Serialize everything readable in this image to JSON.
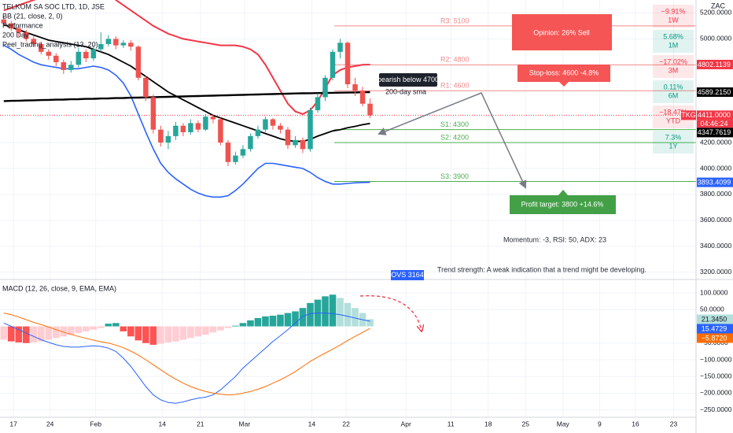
{
  "chart_data": [
    {
      "type": "candlestick",
      "title": "TELKOM SA SOC LTD, 1D, JSE",
      "currency": "ZAC",
      "indicators": [
        "BB (21, close, 2, 0)",
        "Performance",
        "200 Day",
        "Peel_trading_analysis (13, 20)"
      ],
      "up_color": "#26a69a",
      "down_color": "#ef5350",
      "xlim": [
        -0.5,
        92.6
      ],
      "ylim": [
        3150,
        5300
      ],
      "yticks": [
        {
          "value": 5200,
          "label": "5200.0000"
        },
        {
          "value": 5000,
          "label": "5000.0000"
        },
        {
          "value": 4200,
          "label": "4200.0000"
        },
        {
          "value": 4000,
          "label": "4000.0000"
        },
        {
          "value": 3800,
          "label": "3800.0000"
        },
        {
          "value": 3600,
          "label": "3600.0000"
        },
        {
          "value": 3400,
          "label": "3400.0000"
        },
        {
          "value": 3200,
          "label": "3200.0000"
        }
      ],
      "grid": true,
      "open": [
        5150,
        5120,
        5080,
        5050,
        5000,
        4960,
        4900,
        4870,
        4820,
        4760,
        4800,
        4900,
        4850,
        4920,
        4960,
        5000,
        4950,
        4970,
        4940,
        4700,
        4550,
        4300,
        4200,
        4250,
        4330,
        4280,
        4350,
        4300,
        4400,
        4380,
        4200,
        4050,
        4100,
        4150,
        4250,
        4300,
        4380,
        4330,
        4300,
        4180,
        4220,
        4150,
        4450,
        4550,
        4700,
        4900,
        4970,
        4650,
        4600,
        4500
      ],
      "high": [
        5180,
        5140,
        5100,
        5070,
        5020,
        4980,
        4920,
        4890,
        4840,
        4830,
        4930,
        4920,
        4950,
        5050,
        5030,
        5020,
        4990,
        4990,
        4950,
        4720,
        4570,
        4330,
        4290,
        4360,
        4350,
        4380,
        4370,
        4420,
        4410,
        4390,
        4220,
        4130,
        4180,
        4270,
        4330,
        4400,
        4390,
        4350,
        4320,
        4250,
        4240,
        4470,
        4580,
        4720,
        4920,
        5000,
        4980,
        4700,
        4630,
        4540
      ],
      "low": [
        5100,
        5060,
        5020,
        4980,
        4940,
        4880,
        4840,
        4790,
        4730,
        4740,
        4780,
        4820,
        4830,
        4900,
        4940,
        4920,
        4930,
        4910,
        4680,
        4520,
        4270,
        4170,
        4150,
        4220,
        4250,
        4260,
        4280,
        4290,
        4350,
        4180,
        4020,
        4030,
        4080,
        4130,
        4230,
        4280,
        4300,
        4270,
        4150,
        4160,
        4120,
        4130,
        4430,
        4520,
        4680,
        4850,
        4620,
        4560,
        4480,
        4390
      ],
      "close": [
        5120,
        5080,
        5050,
        5000,
        4960,
        4900,
        4870,
        4820,
        4760,
        4800,
        4900,
        4850,
        4920,
        4960,
        5000,
        4950,
        4970,
        4940,
        4700,
        4550,
        4300,
        4200,
        4250,
        4330,
        4280,
        4350,
        4300,
        4400,
        4380,
        4200,
        4050,
        4100,
        4150,
        4250,
        4300,
        4380,
        4330,
        4300,
        4180,
        4220,
        4150,
        4450,
        4550,
        4700,
        4900,
        4970,
        4650,
        4600,
        4500,
        4411
      ],
      "series": [
        {
          "color": "#f23645",
          "width": 2,
          "values": [
            5220,
            5240,
            5260,
            5280,
            5300,
            5320,
            5340,
            5350,
            5360,
            5370,
            5380,
            5380,
            5380,
            5380,
            5370,
            5300,
            5260,
            5220,
            5180,
            5140,
            5100,
            5070,
            5040,
            5020,
            5000,
            4990,
            4980,
            4970,
            4960,
            4950,
            4950,
            4950,
            4940,
            4920,
            4880,
            4800,
            4700,
            4600,
            4500,
            4440,
            4420,
            4450,
            4520,
            4620,
            4720,
            4760,
            4780,
            4790,
            4800,
            4802.1139
          ]
        },
        {
          "color": "#2962ff",
          "width": 1.6,
          "values": [
            4950,
            4920,
            4880,
            4850,
            4820,
            4800,
            4790,
            4780,
            4770,
            4770,
            4770,
            4780,
            4790,
            4780,
            4760,
            4720,
            4660,
            4560,
            4420,
            4280,
            4150,
            4040,
            3970,
            3920,
            3880,
            3840,
            3810,
            3790,
            3780,
            3780,
            3790,
            3830,
            3880,
            3940,
            4000,
            4040,
            4040,
            4030,
            4020,
            4010,
            4000,
            3970,
            3930,
            3900,
            3880,
            3880,
            3885,
            3890,
            3892,
            3893.4099
          ]
        },
        {
          "color": "#000000",
          "width": 1.8,
          "values": [
            5110,
            5090,
            5070,
            5050,
            5030,
            5010,
            4990,
            4980,
            4970,
            4960,
            4950,
            4940,
            4920,
            4900,
            4880,
            4850,
            4820,
            4790,
            4750,
            4710,
            4670,
            4630,
            4590,
            4560,
            4530,
            4500,
            4470,
            4440,
            4410,
            4390,
            4370,
            4350,
            4330,
            4310,
            4290,
            4270,
            4250,
            4230,
            4215,
            4210,
            4210,
            4225,
            4250,
            4270,
            4290,
            4300,
            4315,
            4325,
            4338,
            4347.7619
          ]
        },
        {
          "color": "#000000",
          "width": 2.4,
          "values": [
            4520,
            4522,
            4523,
            4525,
            4526,
            4528,
            4529,
            4531,
            4532,
            4534,
            4535,
            4537,
            4538,
            4540,
            4541,
            4543,
            4544,
            4546,
            4547,
            4549,
            4550,
            4552,
            4553,
            4555,
            4556,
            4558,
            4559,
            4561,
            4562,
            4564,
            4565,
            4567,
            4568,
            4570,
            4571,
            4573,
            4574,
            4576,
            4577,
            4579,
            4580,
            4581,
            4582,
            4583,
            4584,
            4585,
            4586,
            4587,
            4588,
            4589.215
          ]
        }
      ],
      "levels": [
        {
          "label": "R3: 5100",
          "value": 5100,
          "color": "#f28b8b"
        },
        {
          "label": "R2: 4800",
          "value": 4800,
          "color": "#f28b8b"
        },
        {
          "label": "R1: 4600",
          "value": 4600,
          "color": "#f28b8b"
        },
        {
          "label": "S1: 4300",
          "value": 4300,
          "color": "#4caf50"
        },
        {
          "label": "S2: 4200",
          "value": 4200,
          "color": "#4caf50"
        },
        {
          "label": "S3: 3900",
          "value": 3900,
          "color": "#4caf50"
        }
      ],
      "last_price": {
        "value": 4411,
        "label": "4411.0000",
        "color": "#f23645"
      },
      "symbol_tag": "TKG",
      "countdown": "04:46:24",
      "price_labels": [
        {
          "value": 4802.1139,
          "color": "#f23645"
        },
        {
          "value": {
            "value": 4589.215,
            "label": "4589.2150"
          },
          "color": "#000000"
        },
        {
          "value": 4347.7619,
          "color": "#000000"
        },
        {
          "value": 3893.4099,
          "color": "#2962ff"
        }
      ]
    },
    {
      "type": "macd",
      "title": "MACD (12, 26, close, 9, EMA, EMA)",
      "xlim": [
        -0.5,
        92.6
      ],
      "ylim": [
        -272,
        138
      ],
      "yticks": [
        {
          "value": 100,
          "label": "100.0000"
        },
        {
          "value": 50,
          "label": "50.0000"
        },
        {
          "value": -50,
          "label": "−50.0000"
        },
        {
          "value": -100,
          "label": "−100.0000"
        },
        {
          "value": -150,
          "label": "−150.0000"
        },
        {
          "value": -200,
          "label": "−200.0000"
        },
        {
          "value": -250,
          "label": "−250.0000"
        }
      ],
      "xticks": [
        {
          "value": 1.3,
          "label": "17"
        },
        {
          "value": 6.2,
          "label": "24"
        },
        {
          "value": 12.3,
          "label": "Feb"
        },
        {
          "value": 21.2,
          "label": "14"
        },
        {
          "value": 26.3,
          "label": "21"
        },
        {
          "value": 32.2,
          "label": "Mar"
        },
        {
          "value": 41.2,
          "label": "14"
        },
        {
          "value": 45.8,
          "label": "22"
        },
        {
          "value": 53.8,
          "label": "Apr"
        },
        {
          "value": 59.8,
          "label": "11"
        },
        {
          "value": 64.8,
          "label": "18"
        },
        {
          "value": 69.8,
          "label": "25"
        },
        {
          "value": 74.8,
          "label": "May"
        },
        {
          "value": 79.7,
          "label": "9"
        },
        {
          "value": 84.5,
          "label": "16"
        },
        {
          "value": 89.6,
          "label": "23"
        }
      ],
      "histogram": {
        "colors": {
          "grow_above": "#26a69a",
          "fall_above": "#b2dfdb",
          "grow_below": "#ffcdd2",
          "fall_below": "#ff5252"
        },
        "values": [
          -40,
          -45,
          -48,
          -50,
          -48,
          -45,
          -40,
          -35,
          -30,
          -25,
          -20,
          -15,
          -10,
          -5,
          8,
          10,
          -15,
          -30,
          -42,
          -50,
          -55,
          -52,
          -48,
          -45,
          -40,
          -35,
          -30,
          -25,
          -18,
          -12,
          -5,
          2,
          10,
          18,
          25,
          30,
          32,
          35,
          40,
          45,
          55,
          70,
          80,
          90,
          95,
          85,
          70,
          55,
          40,
          21.345
        ]
      },
      "series": [
        {
          "color": "#2962ff",
          "values": [
            10,
            0,
            -10,
            -20,
            -30,
            -40,
            -48,
            -55,
            -60,
            -62,
            -62,
            -60,
            -58,
            -60,
            -65,
            -75,
            -95,
            -120,
            -150,
            -180,
            -205,
            -220,
            -228,
            -230,
            -226,
            -220,
            -215,
            -212,
            -205,
            -190,
            -170,
            -150,
            -125,
            -105,
            -85,
            -65,
            -45,
            -28,
            -10,
            10,
            30,
            38,
            40,
            40,
            38,
            35,
            30,
            25,
            20,
            15.4729
          ]
        },
        {
          "color": "#ff6d00",
          "values": [
            40,
            35,
            28,
            20,
            12,
            5,
            -2,
            -10,
            -17,
            -24,
            -30,
            -36,
            -41,
            -46,
            -50,
            -56,
            -64,
            -74,
            -86,
            -100,
            -115,
            -130,
            -145,
            -158,
            -170,
            -180,
            -188,
            -195,
            -200,
            -203,
            -205,
            -204,
            -200,
            -195,
            -188,
            -180,
            -170,
            -160,
            -148,
            -135,
            -120,
            -105,
            -92,
            -80,
            -68,
            -56,
            -42,
            -30,
            -18,
            -5.872
          ]
        }
      ],
      "last_labels": [
        {
          "value": {
            "value": 21.345,
            "label": "21.3450"
          },
          "color": "#b2dfdb",
          "text": "#131722"
        },
        {
          "value": 15.4729,
          "color": "#2962ff",
          "text": "#ffffff"
        },
        {
          "value": {
            "value": -5.872,
            "label": "−5.8720"
          },
          "color": "#ff6d00",
          "text": "#ffffff"
        }
      ]
    }
  ],
  "performance": [
    {
      "change": "−9.91%",
      "period": "1W",
      "color": "#f23645"
    },
    {
      "change": "5.68%",
      "period": "1M",
      "color": "#089981"
    },
    {
      "change": "−17.02%",
      "period": "3M",
      "color": "#f23645"
    },
    {
      "change": "0.11%",
      "period": "6M",
      "color": "#089981"
    },
    {
      "change": "−18.47%",
      "period": "YTD",
      "color": "#f23645"
    },
    {
      "change": "7.3%",
      "period": "1Y",
      "color": "#089981"
    }
  ],
  "annotations": {
    "opinion": "Opinion: 26% Sell",
    "stop_loss": "Stop-loss: 4600 -4.8%",
    "profit_target": "Profit target: 3800 +14.6%",
    "bearish": "bearish below 4700",
    "sma": "200-day sma",
    "momentum": "Momentum: -3, RSI: 50, ADX: 23",
    "trend": "Trend strength: A weak indication that a trend might be developing.",
    "ovs": "OVS 3164"
  }
}
